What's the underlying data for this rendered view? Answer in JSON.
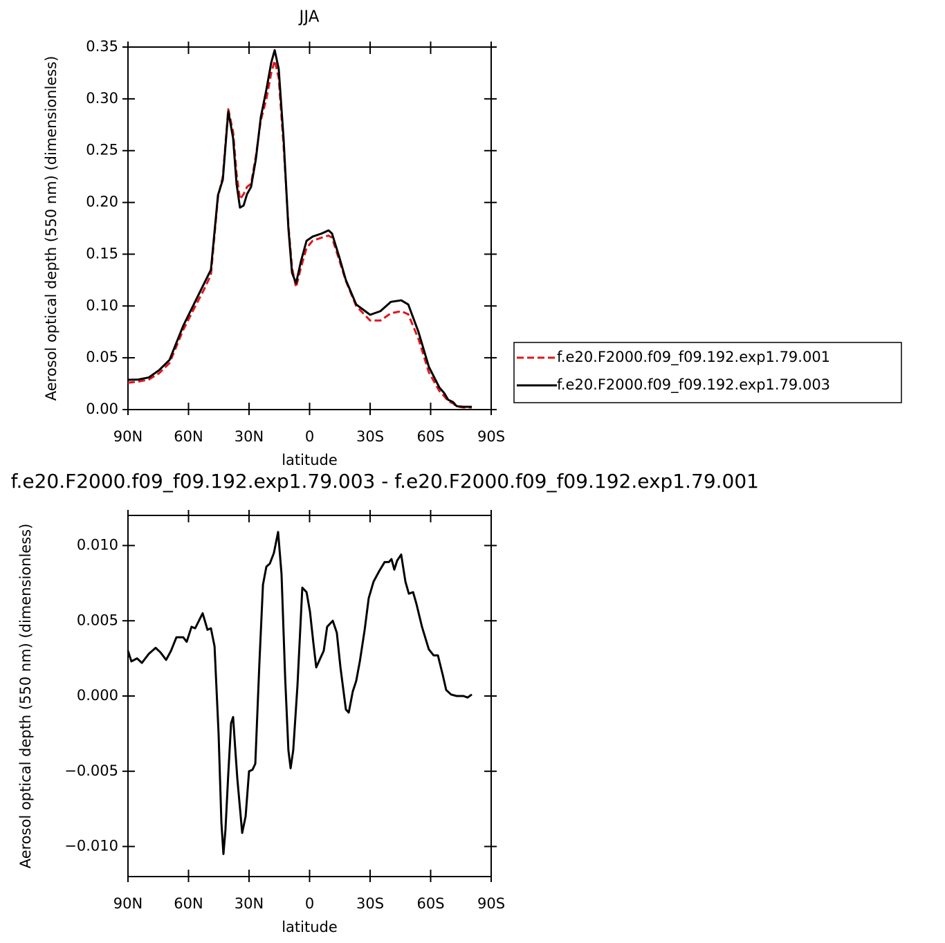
{
  "chart_data": [
    {
      "type": "line",
      "title": "JJA",
      "xlabel": "latitude",
      "ylabel": "Aerosol optical depth (550 nm) (dimensionless)",
      "x": [
        90,
        84.9,
        79.7,
        74.6,
        69.4,
        62.6,
        57.4,
        52.3,
        48.9,
        45.4,
        43.0,
        40.3,
        37.9,
        36.2,
        34.5,
        32.7,
        31.0,
        29.0,
        26.6,
        24.2,
        21.4,
        19.0,
        17.3,
        15.3,
        12.9,
        10.5,
        8.7,
        6.7,
        4.3,
        1.5,
        -1.5,
        -6.0,
        -9.4,
        -11.1,
        -14.6,
        -18.0,
        -23.1,
        -30,
        -35.1,
        -40.3,
        -45.4,
        -48.9,
        -54.0,
        -59.1,
        -64.3,
        -66.7,
        -68.7,
        -71.1,
        -72.9,
        -76.3,
        -80.4
      ],
      "series": [
        {
          "name": "f.e20.F2000.f09_f09.192.exp1.79.001",
          "color": "#e0161b",
          "style": "dashed",
          "values": [
            0.026,
            0.027,
            0.029,
            0.035,
            0.045,
            0.077,
            0.097,
            0.116,
            0.13,
            0.205,
            0.225,
            0.29,
            0.268,
            0.228,
            0.203,
            0.208,
            0.215,
            0.218,
            0.245,
            0.279,
            0.3,
            0.325,
            0.337,
            0.32,
            0.255,
            0.178,
            0.137,
            0.118,
            0.137,
            0.156,
            0.163,
            0.166,
            0.168,
            0.166,
            0.145,
            0.124,
            0.1,
            0.086,
            0.086,
            0.093,
            0.095,
            0.092,
            0.068,
            0.036,
            0.018,
            0.013,
            0.008,
            0.006,
            0.003,
            0.002,
            0.002
          ]
        },
        {
          "name": "f.e20.F2000.f09_f09.192.exp1.79.003",
          "color": "#000000",
          "style": "solid",
          "values": [
            0.0287,
            0.029,
            0.031,
            0.038,
            0.048,
            0.081,
            0.1015,
            0.1216,
            0.135,
            0.207,
            0.222,
            0.288,
            0.262,
            0.218,
            0.195,
            0.197,
            0.208,
            0.215,
            0.242,
            0.282,
            0.309,
            0.335,
            0.347,
            0.329,
            0.262,
            0.175,
            0.132,
            0.122,
            0.143,
            0.163,
            0.167,
            0.17,
            0.173,
            0.17,
            0.148,
            0.125,
            0.1015,
            0.0915,
            0.095,
            0.104,
            0.1055,
            0.1015,
            0.0748,
            0.0414,
            0.0214,
            0.016,
            0.0094,
            0.0073,
            0.0033,
            0.0027,
            0.0027
          ]
        }
      ],
      "xlim": [
        90,
        -90
      ],
      "xticks": [
        {
          "value": 90,
          "label": "90N"
        },
        {
          "value": 60,
          "label": "60N"
        },
        {
          "value": 30,
          "label": "30N"
        },
        0,
        {
          "value": -30,
          "label": "30S"
        },
        {
          "value": -60,
          "label": "60S"
        },
        {
          "value": -90,
          "label": "90S"
        }
      ],
      "ylim": [
        0,
        0.35
      ],
      "yticks": [
        {
          "value": 0,
          "label": "0.00"
        },
        0.05,
        {
          "value": 0.1,
          "label": "0.10"
        },
        0.15,
        {
          "value": 0.2,
          "label": "0.20"
        },
        0.25,
        {
          "value": 0.3,
          "label": "0.30"
        },
        0.35
      ],
      "legend": "right"
    },
    {
      "type": "line",
      "title": "f.e20.F2000.f09_f09.192.exp1.79.003 - f.e20.F2000.f09_f09.192.exp1.79.001",
      "xlabel": "latitude",
      "ylabel": "Aerosol optical depth (550 nm) (dimensionless)",
      "x": [
        90,
        88.3,
        85.5,
        83.1,
        79.7,
        76.3,
        73.9,
        71.1,
        68.7,
        66.0,
        62.6,
        60.9,
        58.5,
        56.7,
        53.0,
        50.6,
        48.9,
        47.1,
        45.1,
        43.7,
        42.7,
        41.7,
        40.3,
        38.9,
        37.9,
        36.9,
        35.8,
        33.4,
        31.7,
        30.0,
        28.3,
        26.9,
        24.9,
        23.1,
        21.4,
        19.7,
        17.7,
        15.6,
        13.9,
        12.1,
        10.5,
        9.4,
        8.1,
        6.0,
        3.6,
        1.5,
        -0.2,
        -1.9,
        -3.3,
        -5.3,
        -7.0,
        -8.7,
        -11.5,
        -13.5,
        -15.3,
        -18.0,
        -19.4,
        -21.4,
        -23.1,
        -24.9,
        -27.3,
        -29.3,
        -31.7,
        -34.5,
        -37.2,
        -39.3,
        -40.6,
        -42.0,
        -43.4,
        -45.4,
        -47.5,
        -49.2,
        -51.3,
        -53.0,
        -55.7,
        -59.1,
        -61.5,
        -63.6,
        -66.0,
        -67.7,
        -70.1,
        -72.9,
        -76.3,
        -78.3,
        -80.4
      ],
      "values": [
        0.003,
        0.0023,
        0.0025,
        0.0022,
        0.0028,
        0.0032,
        0.0029,
        0.0024,
        0.003,
        0.0039,
        0.0039,
        0.0036,
        0.0046,
        0.0045,
        0.0055,
        0.0044,
        0.0045,
        0.0033,
        -0.0025,
        -0.0084,
        -0.0105,
        -0.0089,
        -0.0052,
        -0.0018,
        -0.0014,
        -0.0034,
        -0.0055,
        -0.0091,
        -0.008,
        -0.005,
        -0.0049,
        -0.0045,
        0.0021,
        0.0074,
        0.0086,
        0.0088,
        0.0095,
        0.0109,
        0.0081,
        0.0012,
        -0.0036,
        -0.0048,
        -0.0036,
        0.0007,
        0.0072,
        0.0069,
        0.0056,
        0.0035,
        0.0019,
        0.0025,
        0.003,
        0.0046,
        0.005,
        0.0042,
        0.0019,
        -0.0009,
        -0.0011,
        0.0003,
        0.001,
        0.0023,
        0.0044,
        0.0065,
        0.0076,
        0.0083,
        0.0089,
        0.0089,
        0.0091,
        0.0084,
        0.009,
        0.0094,
        0.0076,
        0.0068,
        0.0069,
        0.0061,
        0.0046,
        0.0031,
        0.0027,
        0.0027,
        0.0014,
        0.0004,
        0.0001,
        0.0,
        0.0,
        -0.0001,
        0.0001
      ],
      "color": "#000000",
      "xlim": [
        90,
        -90
      ],
      "xticks": [
        {
          "value": 90,
          "label": "90N"
        },
        {
          "value": 60,
          "label": "60N"
        },
        {
          "value": 30,
          "label": "30N"
        },
        0,
        {
          "value": -30,
          "label": "30S"
        },
        {
          "value": -60,
          "label": "60S"
        },
        {
          "value": -90,
          "label": "90S"
        }
      ],
      "ylim": [
        -0.012,
        0.012
      ],
      "yticks": [
        {
          "value": -0.01,
          "label": "−0.010"
        },
        {
          "value": -0.005,
          "label": "−0.005"
        },
        {
          "value": 0,
          "label": "0.000"
        },
        0.005,
        {
          "value": 0.01,
          "label": "0.010"
        }
      ]
    }
  ]
}
